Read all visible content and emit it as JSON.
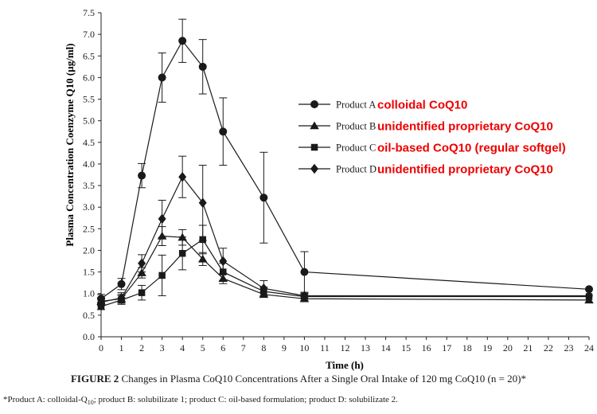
{
  "chart_data": {
    "type": "line",
    "xlabel": "Time (h)",
    "ylabel": "Plasma Concentration Coenzyme Q10 (µg/ml)",
    "xlim": [
      0,
      24
    ],
    "ylim": [
      0,
      7.5
    ],
    "x_ticks": [
      "0",
      "1",
      "2",
      "3",
      "4",
      "5",
      "6",
      "7",
      "8",
      "9",
      "10",
      "11",
      "12",
      "13",
      "14",
      "15",
      "16",
      "17",
      "18",
      "19",
      "20",
      "21",
      "22",
      "23",
      "24"
    ],
    "y_ticks": [
      "0.0",
      "0.5",
      "1.0",
      "1.5",
      "2.0",
      "2.5",
      "3.0",
      "3.5",
      "4.0",
      "4.5",
      "5.0",
      "5.5",
      "6.0",
      "6.5",
      "7.0",
      "7.5"
    ],
    "grid": false,
    "legend_position": "center-right",
    "series": [
      {
        "name": "Product A",
        "annotation": "colloidal CoQ10",
        "marker": "circle",
        "x": [
          0,
          1,
          2,
          3,
          4,
          5,
          6,
          8,
          10,
          24
        ],
        "y": [
          0.88,
          1.22,
          3.73,
          6.0,
          6.85,
          6.25,
          4.75,
          3.22,
          1.5,
          1.1
        ],
        "err": [
          0.1,
          0.13,
          0.28,
          0.57,
          0.5,
          0.63,
          0.78,
          1.05,
          0.47,
          0
        ]
      },
      {
        "name": "Product B",
        "annotation": "unidentified proprietary CoQ10",
        "marker": "triangle",
        "x": [
          0,
          1,
          2,
          3,
          4,
          5,
          6,
          8,
          10,
          24
        ],
        "y": [
          0.82,
          0.88,
          1.48,
          2.33,
          2.3,
          1.8,
          1.35,
          0.98,
          0.88,
          0.85
        ],
        "err": [
          0.08,
          0.1,
          0.12,
          0.22,
          0.18,
          0.15,
          0.12,
          0.06,
          0.04,
          0
        ]
      },
      {
        "name": "Product C",
        "annotation": "oil-based CoQ10 (regular softgel)",
        "marker": "square",
        "x": [
          0,
          1,
          2,
          3,
          4,
          5,
          6,
          8,
          10,
          24
        ],
        "y": [
          0.7,
          0.85,
          1.02,
          1.42,
          1.93,
          2.25,
          1.5,
          1.05,
          0.93,
          0.93
        ],
        "err": [
          0.07,
          0.1,
          0.17,
          0.47,
          0.38,
          0.33,
          0.2,
          0.1,
          0.05,
          0
        ]
      },
      {
        "name": "Product D",
        "annotation": "unidentified proprietary CoQ10",
        "marker": "diamond",
        "x": [
          0,
          1,
          2,
          3,
          4,
          5,
          6,
          8,
          10,
          24
        ],
        "y": [
          0.8,
          0.9,
          1.7,
          2.73,
          3.7,
          3.1,
          1.75,
          1.12,
          0.95,
          0.95
        ],
        "err": [
          0.08,
          0.12,
          0.2,
          0.43,
          0.48,
          0.87,
          0.3,
          0.18,
          0.06,
          0
        ]
      }
    ],
    "annotation_color": "#ee0000"
  },
  "caption": {
    "label": "FIGURE 2",
    "text": "Changes in Plasma CoQ10 Concentrations After a Single Oral Intake of 120 mg CoQ10 (n = 20)*"
  },
  "footnote": {
    "part1": "*Product A: colloidal-Q",
    "sub": "10",
    "part2": "; product B: solubilizate 1; product C: oil-based formulation; product D: solubilizate 2."
  }
}
